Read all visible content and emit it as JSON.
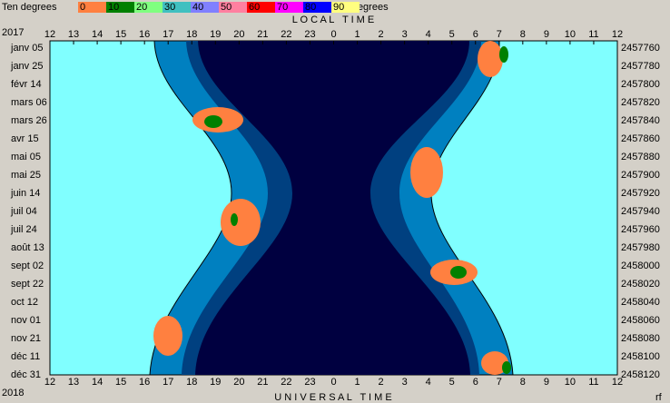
{
  "legend": {
    "title": "Ten degrees",
    "labels": [
      "0",
      "10",
      "20",
      "30",
      "40",
      "50",
      "60",
      "70",
      "80",
      "90"
    ],
    "colors": [
      "#ff8040",
      "#008000",
      "#80ff80",
      "#40c0c0",
      "#8080ff",
      "#ff80a0",
      "#ff0000",
      "#ff00ff",
      "#0000ff",
      "#ffff80"
    ],
    "unit": "Degrees"
  },
  "top_axis": {
    "title": "L O C A L   T I M E",
    "year": "2017",
    "ticks": [
      "12",
      "13",
      "14",
      "15",
      "16",
      "17",
      "18",
      "19",
      "20",
      "21",
      "22",
      "23",
      "0",
      "1",
      "2",
      "3",
      "4",
      "5",
      "6",
      "7",
      "8",
      "9",
      "10",
      "11",
      "12"
    ]
  },
  "bottom_axis": {
    "title": "U N I V E R S A L   T I M E",
    "year": "2018",
    "ticks": [
      "12",
      "13",
      "14",
      "15",
      "16",
      "17",
      "18",
      "19",
      "20",
      "21",
      "22",
      "23",
      "0",
      "1",
      "2",
      "3",
      "4",
      "5",
      "6",
      "7",
      "8",
      "9",
      "10",
      "11",
      "12"
    ]
  },
  "dates": [
    "janv 05",
    "janv 25",
    "févr 14",
    "mars 06",
    "mars 26",
    "avr 15",
    "mai 05",
    "mai 25",
    "juin 14",
    "juil 04",
    "juil 24",
    "août 13",
    "sept 02",
    "sept 22",
    "oct 12",
    "nov 01",
    "nov 21",
    "déc 11",
    "déc 31"
  ],
  "julian_days": [
    "2457760",
    "2457780",
    "2457800",
    "2457820",
    "2457840",
    "2457860",
    "2457880",
    "2457900",
    "2457920",
    "2457940",
    "2457960",
    "2457980",
    "2458000",
    "2458020",
    "2458040",
    "2458060",
    "2458080",
    "2458100",
    "2458120"
  ],
  "corner": "rf"
}
